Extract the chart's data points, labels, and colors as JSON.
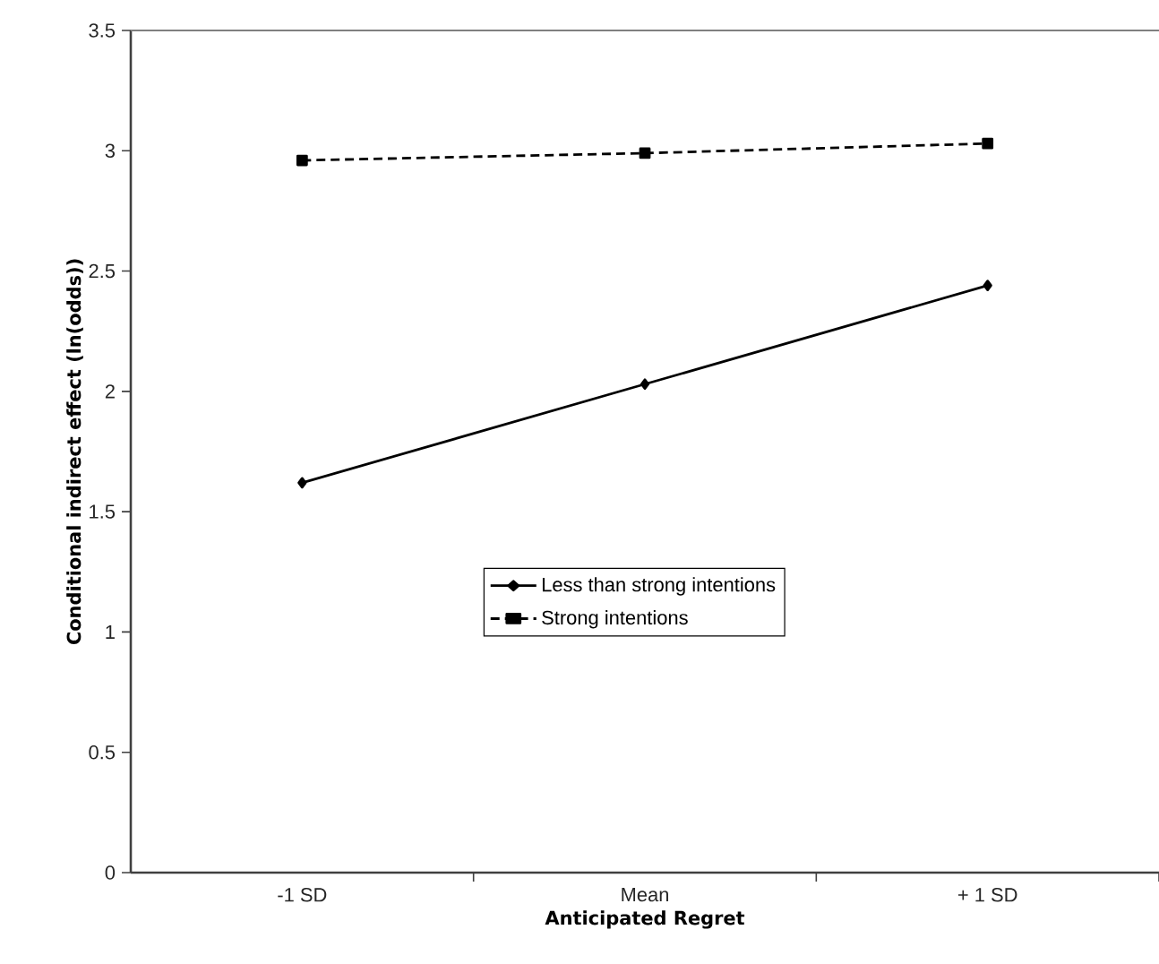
{
  "chart_data": {
    "type": "line",
    "xlabel": "Anticipated Regret",
    "ylabel": "Conditional indirect effect (ln(odds))",
    "categories": [
      "-1 SD",
      "Mean",
      "+ 1 SD"
    ],
    "series": [
      {
        "name": "Less than strong intentions",
        "color": "#000000",
        "values": [
          1.62,
          2.03,
          2.44
        ],
        "marker": "diamond",
        "line_style": "solid"
      },
      {
        "name": "Strong intentions",
        "color": "#000000",
        "values": [
          2.96,
          2.99,
          3.03
        ],
        "marker": "square",
        "line_style": "dashed"
      }
    ],
    "ylim": [
      0,
      3.5
    ],
    "yticks": [
      0,
      0.5,
      1,
      1.5,
      2,
      2.5,
      3,
      3.5
    ],
    "grid": false,
    "legend": "bottom"
  }
}
